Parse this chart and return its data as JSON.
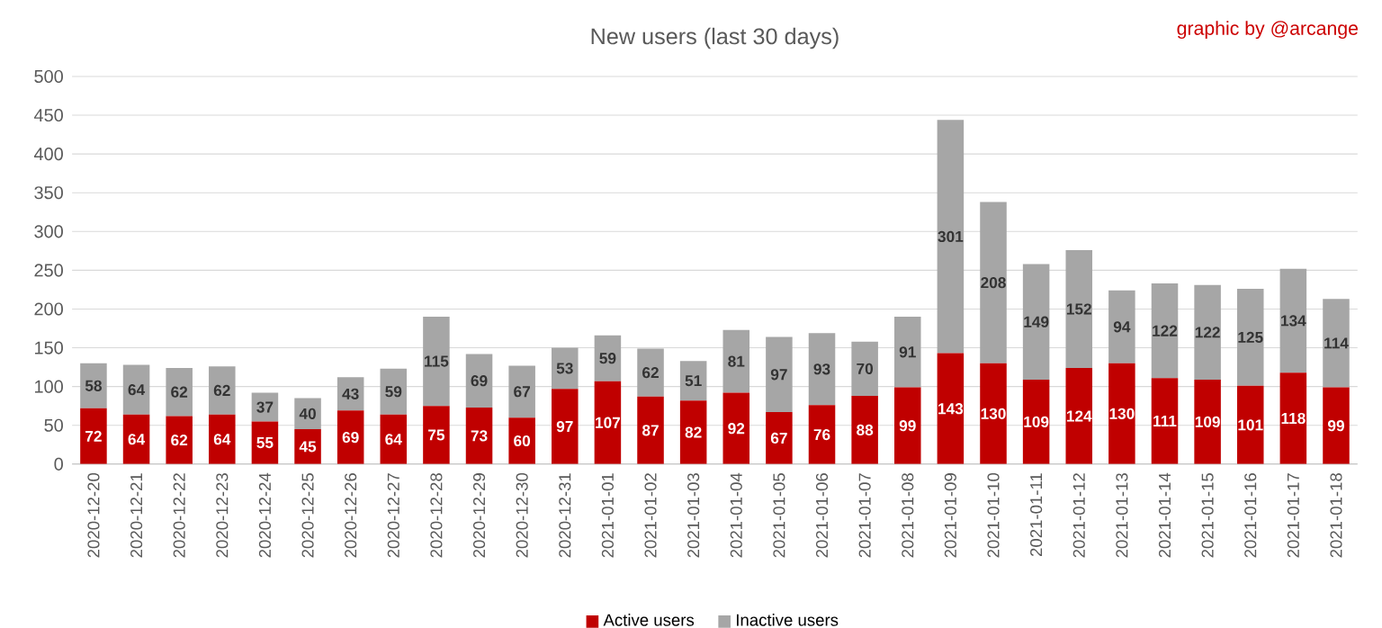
{
  "chart_data": {
    "type": "bar",
    "title": "New users (last 30 days)",
    "stacked": true,
    "data_labels": true,
    "grid": "y",
    "legend": "bottom",
    "annotations": [
      "graphic by @arcange"
    ],
    "categories": [
      "2020-12-20",
      "2020-12-21",
      "2020-12-22",
      "2020-12-23",
      "2020-12-24",
      "2020-12-25",
      "2020-12-26",
      "2020-12-27",
      "2020-12-28",
      "2020-12-29",
      "2020-12-30",
      "2020-12-31",
      "2021-01-01",
      "2021-01-02",
      "2021-01-03",
      "2021-01-04",
      "2021-01-05",
      "2021-01-06",
      "2021-01-07",
      "2021-01-08",
      "2021-01-09",
      "2021-01-10",
      "2021-01-11",
      "2021-01-12",
      "2021-01-13",
      "2021-01-14",
      "2021-01-15",
      "2021-01-16",
      "2021-01-17",
      "2021-01-18"
    ],
    "ylim": [
      0,
      500
    ],
    "yticks": [
      0,
      50,
      100,
      150,
      200,
      250,
      300,
      350,
      400,
      450,
      500
    ],
    "series": [
      {
        "name": "Active users",
        "color": "#c00000",
        "values": [
          72,
          64,
          62,
          64,
          55,
          45,
          69,
          64,
          75,
          73,
          60,
          97,
          107,
          87,
          82,
          92,
          67,
          76,
          88,
          99,
          143,
          130,
          109,
          124,
          130,
          111,
          109,
          101,
          118,
          99
        ]
      },
      {
        "name": "Inactive users",
        "color": "#a6a6a6",
        "values": [
          58,
          64,
          62,
          62,
          37,
          40,
          43,
          59,
          115,
          69,
          67,
          53,
          59,
          62,
          51,
          81,
          97,
          93,
          70,
          91,
          301,
          208,
          149,
          152,
          94,
          122,
          122,
          125,
          134,
          114
        ]
      }
    ]
  }
}
